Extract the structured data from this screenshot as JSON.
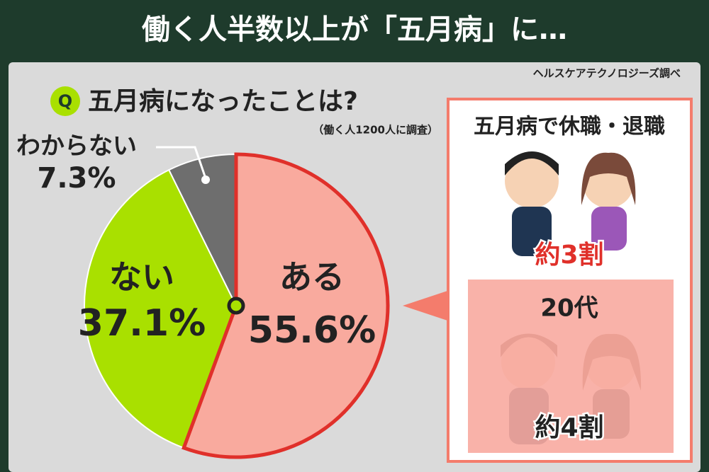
{
  "chart_data": {
    "type": "pie",
    "title": "働く人半数以上が「五月病」に…",
    "source": "ヘルスケアテクノロジーズ調べ",
    "question_mark": "Q",
    "question": "五月病になったことは?",
    "subtitle": "（働く人1200人に調査）",
    "categories": [
      "ある",
      "ない",
      "わからない"
    ],
    "values": [
      55.6,
      37.1,
      7.3
    ],
    "value_labels": [
      "55.6%",
      "37.1%",
      "7.3%"
    ],
    "colors": [
      "#f9aa9e",
      "#a9e000",
      "#6e6e6e"
    ],
    "side_panel": {
      "title": "五月病で休職・退職",
      "overall": "約3割",
      "group": "20代",
      "group_value": "約4割"
    }
  }
}
